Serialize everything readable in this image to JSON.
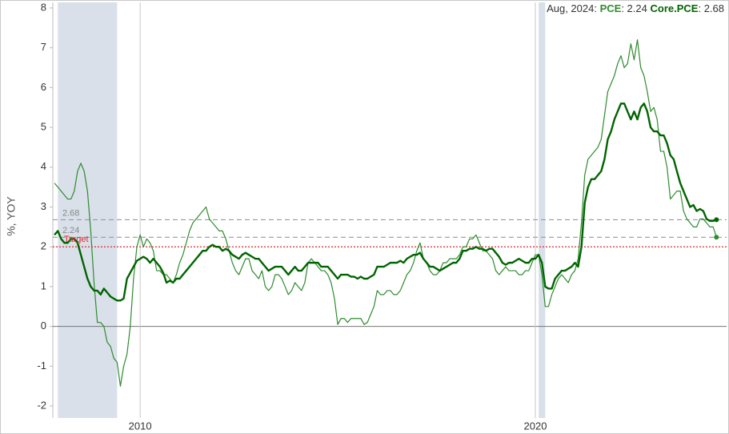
{
  "chart_data": {
    "type": "line",
    "y_label": "%, YOY",
    "annotation_date": "Aug, 2024",
    "x": [
      2007.833,
      2007.917,
      2008,
      2008.083,
      2008.167,
      2008.25,
      2008.333,
      2008.417,
      2008.5,
      2008.583,
      2008.667,
      2008.75,
      2008.833,
      2008.917,
      2009,
      2009.083,
      2009.167,
      2009.25,
      2009.333,
      2009.417,
      2009.5,
      2009.583,
      2009.667,
      2009.75,
      2009.833,
      2009.917,
      2010,
      2010.083,
      2010.167,
      2010.25,
      2010.333,
      2010.417,
      2010.5,
      2010.583,
      2010.667,
      2010.75,
      2010.833,
      2010.917,
      2011,
      2011.083,
      2011.167,
      2011.25,
      2011.333,
      2011.417,
      2011.5,
      2011.583,
      2011.667,
      2011.75,
      2011.833,
      2011.917,
      2012,
      2012.083,
      2012.167,
      2012.25,
      2012.333,
      2012.417,
      2012.5,
      2012.583,
      2012.667,
      2012.75,
      2012.833,
      2012.917,
      2013,
      2013.083,
      2013.167,
      2013.25,
      2013.333,
      2013.417,
      2013.5,
      2013.583,
      2013.667,
      2013.75,
      2013.833,
      2013.917,
      2014,
      2014.083,
      2014.167,
      2014.25,
      2014.333,
      2014.417,
      2014.5,
      2014.583,
      2014.667,
      2014.75,
      2014.833,
      2014.917,
      2015,
      2015.083,
      2015.167,
      2015.25,
      2015.333,
      2015.417,
      2015.5,
      2015.583,
      2015.667,
      2015.75,
      2015.833,
      2015.917,
      2016,
      2016.083,
      2016.167,
      2016.25,
      2016.333,
      2016.417,
      2016.5,
      2016.583,
      2016.667,
      2016.75,
      2016.833,
      2016.917,
      2017,
      2017.083,
      2017.167,
      2017.25,
      2017.333,
      2017.417,
      2017.5,
      2017.583,
      2017.667,
      2017.75,
      2017.833,
      2017.917,
      2018,
      2018.083,
      2018.167,
      2018.25,
      2018.333,
      2018.417,
      2018.5,
      2018.583,
      2018.667,
      2018.75,
      2018.833,
      2018.917,
      2019,
      2019.083,
      2019.167,
      2019.25,
      2019.333,
      2019.417,
      2019.5,
      2019.583,
      2019.667,
      2019.75,
      2019.833,
      2019.917,
      2020,
      2020.083,
      2020.167,
      2020.25,
      2020.333,
      2020.417,
      2020.5,
      2020.583,
      2020.667,
      2020.75,
      2020.833,
      2020.917,
      2021,
      2021.083,
      2021.167,
      2021.25,
      2021.333,
      2021.417,
      2021.5,
      2021.583,
      2021.667,
      2021.75,
      2021.833,
      2021.917,
      2022,
      2022.083,
      2022.167,
      2022.25,
      2022.333,
      2022.417,
      2022.5,
      2022.583,
      2022.667,
      2022.75,
      2022.833,
      2022.917,
      2023,
      2023.083,
      2023.167,
      2023.25,
      2023.333,
      2023.417,
      2023.5,
      2023.583,
      2023.667,
      2023.75,
      2023.833,
      2023.917,
      2024,
      2024.083,
      2024.167,
      2024.25,
      2024.333,
      2024.417,
      2024.5,
      2024.583
    ],
    "series": [
      {
        "name": "PCE",
        "color": "#2e8b2e",
        "width": 1.2,
        "values": [
          3.6,
          3.5,
          3.4,
          3.3,
          3.2,
          3.2,
          3.4,
          3.9,
          4.1,
          3.9,
          3.4,
          2.4,
          1.1,
          0.1,
          0.1,
          0.0,
          -0.4,
          -0.5,
          -0.8,
          -0.9,
          -1.5,
          -1.0,
          -0.7,
          0.0,
          1.2,
          2.0,
          2.3,
          2.0,
          2.2,
          2.1,
          1.9,
          1.4,
          1.4,
          1.3,
          1.3,
          1.2,
          1.1,
          1.3,
          1.6,
          1.8,
          2.1,
          2.4,
          2.6,
          2.7,
          2.8,
          2.9,
          3.0,
          2.7,
          2.6,
          2.5,
          2.4,
          2.4,
          2.2,
          1.9,
          1.6,
          1.4,
          1.3,
          1.5,
          1.7,
          1.7,
          1.4,
          1.3,
          1.2,
          1.4,
          1.0,
          0.9,
          1.0,
          1.3,
          1.3,
          1.2,
          1.0,
          0.8,
          0.9,
          1.1,
          1.0,
          0.9,
          1.1,
          1.6,
          1.7,
          1.6,
          1.5,
          1.4,
          1.4,
          1.3,
          1.1,
          0.7,
          0.05,
          0.2,
          0.2,
          0.1,
          0.2,
          0.2,
          0.2,
          0.2,
          0.05,
          0.1,
          0.3,
          0.5,
          0.9,
          0.8,
          0.8,
          0.9,
          0.9,
          0.8,
          0.8,
          0.9,
          1.1,
          1.3,
          1.4,
          1.6,
          1.9,
          2.1,
          1.7,
          1.6,
          1.4,
          1.3,
          1.3,
          1.4,
          1.6,
          1.6,
          1.7,
          1.7,
          1.7,
          1.8,
          2.0,
          2.0,
          2.2,
          2.2,
          2.3,
          2.1,
          1.9,
          1.9,
          1.8,
          1.7,
          1.4,
          1.3,
          1.4,
          1.5,
          1.4,
          1.4,
          1.4,
          1.3,
          1.3,
          1.4,
          1.4,
          1.6,
          1.8,
          1.8,
          1.3,
          0.5,
          0.5,
          0.8,
          1.0,
          1.2,
          1.3,
          1.2,
          1.1,
          1.3,
          1.4,
          1.7,
          2.6,
          3.8,
          4.2,
          4.3,
          4.4,
          4.5,
          4.7,
          5.3,
          5.9,
          6.1,
          6.3,
          6.6,
          6.8,
          6.5,
          6.6,
          7.1,
          6.7,
          7.2,
          6.5,
          6.3,
          5.9,
          5.4,
          5.5,
          5.2,
          4.4,
          4.4,
          4.0,
          3.2,
          3.3,
          3.4,
          3.4,
          2.9,
          2.7,
          2.6,
          2.5,
          2.5,
          2.7,
          2.7,
          2.6,
          2.5,
          2.5,
          2.24
        ]
      },
      {
        "name": "Core.PCE",
        "color": "#006400",
        "width": 2.4,
        "values": [
          2.3,
          2.4,
          2.2,
          2.1,
          2.1,
          2.2,
          2.2,
          2.1,
          1.8,
          1.5,
          1.2,
          1.0,
          0.9,
          0.9,
          0.8,
          0.95,
          0.85,
          0.75,
          0.7,
          0.65,
          0.65,
          0.7,
          1.2,
          1.35,
          1.5,
          1.65,
          1.7,
          1.75,
          1.7,
          1.6,
          1.7,
          1.6,
          1.5,
          1.35,
          1.1,
          1.15,
          1.1,
          1.2,
          1.2,
          1.3,
          1.4,
          1.5,
          1.6,
          1.7,
          1.8,
          1.9,
          1.9,
          2.0,
          2.05,
          2.0,
          2.0,
          1.9,
          1.95,
          1.9,
          1.8,
          1.75,
          1.7,
          1.8,
          1.85,
          1.8,
          1.75,
          1.7,
          1.7,
          1.6,
          1.5,
          1.4,
          1.45,
          1.5,
          1.5,
          1.5,
          1.4,
          1.3,
          1.4,
          1.5,
          1.4,
          1.4,
          1.5,
          1.6,
          1.6,
          1.6,
          1.6,
          1.5,
          1.5,
          1.5,
          1.4,
          1.3,
          1.2,
          1.3,
          1.3,
          1.3,
          1.25,
          1.25,
          1.2,
          1.25,
          1.2,
          1.2,
          1.25,
          1.3,
          1.5,
          1.5,
          1.5,
          1.55,
          1.6,
          1.6,
          1.6,
          1.65,
          1.6,
          1.7,
          1.75,
          1.8,
          1.8,
          1.85,
          1.7,
          1.6,
          1.5,
          1.5,
          1.45,
          1.4,
          1.45,
          1.5,
          1.55,
          1.6,
          1.6,
          1.7,
          1.9,
          1.9,
          1.95,
          1.95,
          2.0,
          1.95,
          1.95,
          1.9,
          1.95,
          1.95,
          1.85,
          1.75,
          1.6,
          1.55,
          1.6,
          1.6,
          1.65,
          1.7,
          1.65,
          1.6,
          1.6,
          1.7,
          1.7,
          1.8,
          1.6,
          1.0,
          0.95,
          0.95,
          1.2,
          1.3,
          1.4,
          1.4,
          1.45,
          1.5,
          1.6,
          1.5,
          2.0,
          3.1,
          3.5,
          3.7,
          3.7,
          3.8,
          3.9,
          4.2,
          4.7,
          4.9,
          5.2,
          5.4,
          5.6,
          5.6,
          5.4,
          5.2,
          5.4,
          5.2,
          5.5,
          5.6,
          5.4,
          5.0,
          4.9,
          4.9,
          4.8,
          4.8,
          4.6,
          4.3,
          4.2,
          3.9,
          3.6,
          3.4,
          3.2,
          3.0,
          3.05,
          2.9,
          2.95,
          2.9,
          2.7,
          2.65,
          2.65,
          2.68
        ]
      }
    ],
    "recessions": [
      [
        2007.917,
        2009.417
      ],
      [
        2020.083,
        2020.25
      ]
    ],
    "recession_color": "#d9e0ea",
    "reference_lines": [
      {
        "value": 2,
        "label": "Target",
        "color": "#e8262b"
      }
    ],
    "last_value_lines": true,
    "xlim": [
      2007.79,
      2024.84
    ],
    "xticks": [
      2010,
      2020
    ],
    "ylim": [
      -2.3,
      8.14
    ],
    "yticks": [
      -2,
      -1,
      0,
      1,
      2,
      3,
      4,
      5,
      6,
      7,
      8
    ],
    "grid": true
  }
}
